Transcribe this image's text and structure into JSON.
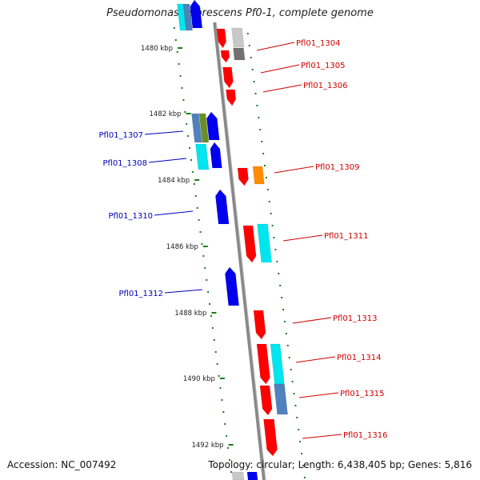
{
  "title": "Pseudomonas fluorescens Pf0-1, complete genome",
  "accession": "Accession: NC_007492",
  "topology": "Topology: circular; Length: 6,438,405 bp; Genes: 5,816",
  "kbp_ticks": [
    "1480 kbp",
    "1482 kbp",
    "1484 kbp",
    "1486 kbp",
    "1488 kbp",
    "1490 kbp",
    "1492 kbp"
  ],
  "colors": {
    "forward_label": "#cc0000",
    "reverse_label": "#0000bb",
    "red": "#ff0000",
    "blue": "#0000ee",
    "cyan": "#00e5ee",
    "steelblue": "#4f81bd",
    "olive": "#6b8e23",
    "orange": "#ff8c00",
    "grey_light": "#c8c8c8",
    "grey_dark": "#707070",
    "tick_green": "#1a7f1a",
    "backbone": "#888888"
  },
  "genes": [
    {
      "name": "Pfl01_1304",
      "strand": "forward"
    },
    {
      "name": "Pfl01_1305",
      "strand": "forward"
    },
    {
      "name": "Pfl01_1306",
      "strand": "forward"
    },
    {
      "name": "Pfl01_1307",
      "strand": "reverse"
    },
    {
      "name": "Pfl01_1308",
      "strand": "reverse"
    },
    {
      "name": "Pfl01_1309",
      "strand": "forward"
    },
    {
      "name": "Pfl01_1310",
      "strand": "reverse"
    },
    {
      "name": "Pfl01_1311",
      "strand": "forward"
    },
    {
      "name": "Pfl01_1312",
      "strand": "reverse"
    },
    {
      "name": "Pfl01_1313",
      "strand": "forward"
    },
    {
      "name": "Pfl01_1314",
      "strand": "forward"
    },
    {
      "name": "Pfl01_1315",
      "strand": "forward"
    },
    {
      "name": "Pfl01_1316",
      "strand": "forward"
    }
  ]
}
